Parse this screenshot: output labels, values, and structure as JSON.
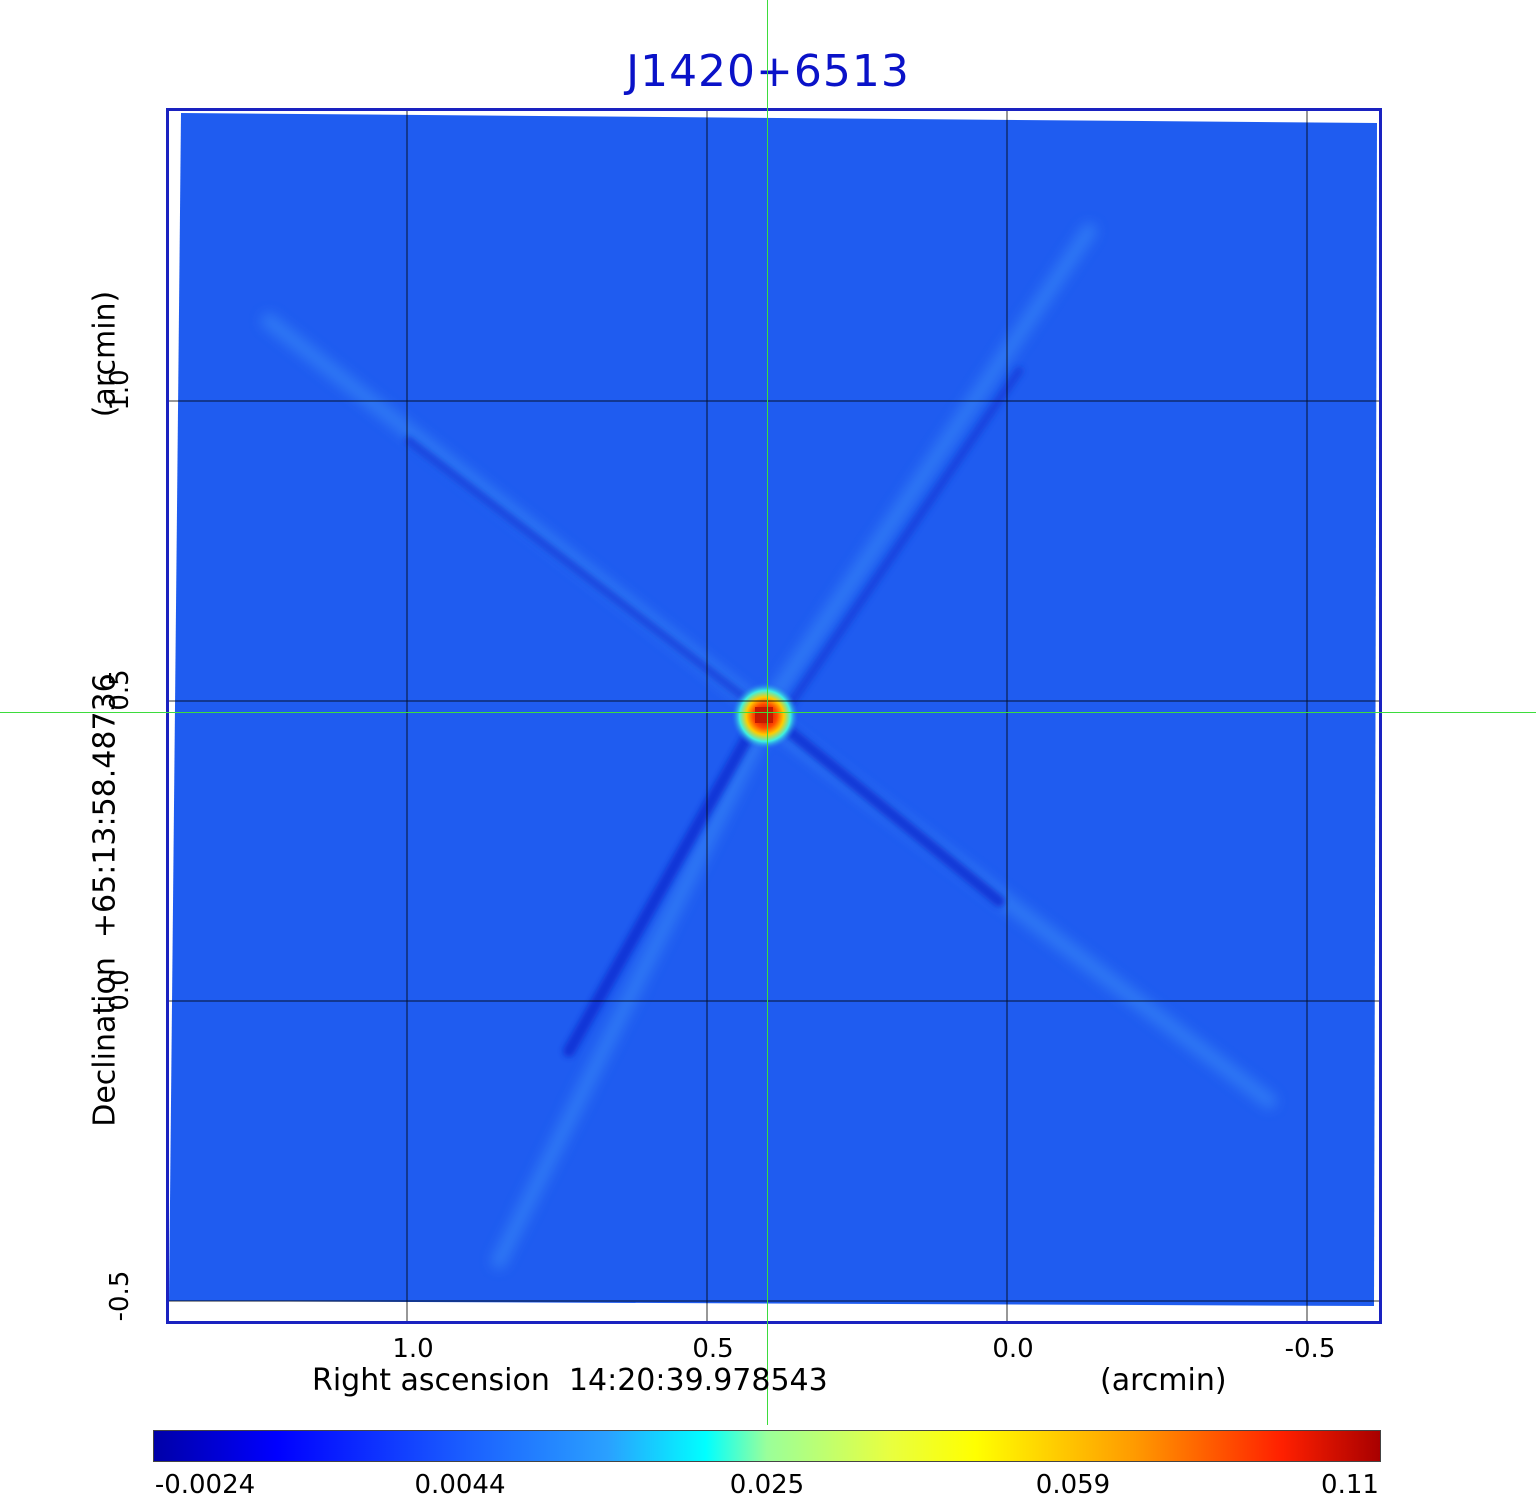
{
  "title": "J1420+6513",
  "axes": {
    "x_label": "Right ascension  14:20:39.978543",
    "x_unit": "(arcmin)",
    "y_label": "Declination  +65:13:58.48736",
    "y_unit": "(arcmin)",
    "x_ticks": [
      "1.0",
      "0.5",
      "0.0",
      "-0.5"
    ],
    "y_ticks": [
      "1.0",
      "0.5",
      "0.0",
      "-0.5"
    ]
  },
  "colorbar": {
    "colormap": "jet",
    "ticks": [
      "-0.0024",
      "0.0044",
      "0.025",
      "0.059",
      "0.11"
    ]
  },
  "colors": {
    "title": "#0a12c8",
    "frame": "#1a22c0",
    "crosshair": "#3ddc3d",
    "background_map": "#1f5cf0"
  }
}
